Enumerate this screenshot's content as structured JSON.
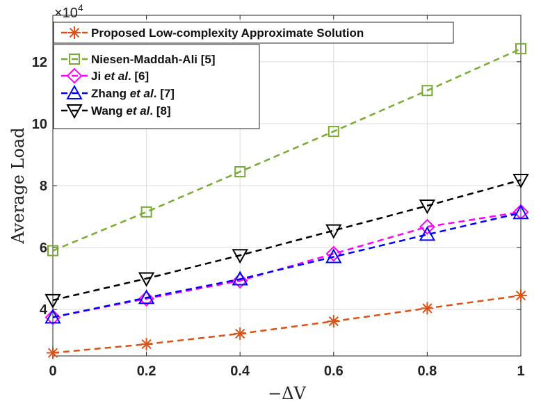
{
  "chart_data": {
    "type": "line",
    "title": "",
    "xlabel": "−ΔV",
    "ylabel": "Average Load",
    "y_multiplier_label": "×10",
    "y_multiplier_exp": "4",
    "xlim": [
      0,
      1
    ],
    "ylim": [
      2.5,
      13.5
    ],
    "x": [
      0,
      0.2,
      0.4,
      0.6,
      0.8,
      1
    ],
    "x_tick_labels": [
      "0",
      "0.2",
      "0.4",
      "0.6",
      "0.8",
      "1"
    ],
    "y_ticks": [
      4,
      6,
      8,
      10,
      12
    ],
    "y_tick_labels": [
      "4",
      "6",
      "8",
      "10",
      "12"
    ],
    "grid": true,
    "legend_position": "top-left",
    "series": [
      {
        "name": "Proposed Low-complexity Approximate Solution",
        "label_parts": [
          {
            "text": "Proposed Low-complexity Approximate Solution",
            "italic": false
          }
        ],
        "color": "#d95319",
        "marker": "asterisk",
        "values": [
          2.6,
          2.88,
          3.22,
          3.62,
          4.04,
          4.45
        ]
      },
      {
        "name": "Niesen-Maddah-Ali [5]",
        "label_parts": [
          {
            "text": "Niesen-Maddah-Ali [5]",
            "italic": false
          }
        ],
        "color": "#77ac30",
        "marker": "square",
        "values": [
          5.9,
          7.15,
          8.45,
          9.75,
          11.07,
          12.42
        ]
      },
      {
        "name": "Ji et al. [6]",
        "label_parts": [
          {
            "text": "Ji ",
            "italic": false
          },
          {
            "text": "et al",
            "italic": true
          },
          {
            "text": ". [6]",
            "italic": false
          }
        ],
        "color": "#ff00ff",
        "marker": "diamond",
        "values": [
          3.75,
          4.35,
          4.93,
          5.8,
          6.67,
          7.15
        ]
      },
      {
        "name": "Zhang et al. [7]",
        "label_parts": [
          {
            "text": "Zhang ",
            "italic": false
          },
          {
            "text": "et al",
            "italic": true
          },
          {
            "text": ". [7]",
            "italic": false
          }
        ],
        "color": "#0000ff",
        "marker": "triangle-up",
        "values": [
          3.75,
          4.38,
          4.98,
          5.7,
          6.42,
          7.12
        ]
      },
      {
        "name": "Wang et al. [8]",
        "label_parts": [
          {
            "text": "Wang ",
            "italic": false
          },
          {
            "text": "et al",
            "italic": true
          },
          {
            "text": ". [8]",
            "italic": false
          }
        ],
        "color": "#000000",
        "marker": "triangle-down",
        "values": [
          4.3,
          5.0,
          5.75,
          6.55,
          7.35,
          8.18
        ]
      }
    ]
  }
}
